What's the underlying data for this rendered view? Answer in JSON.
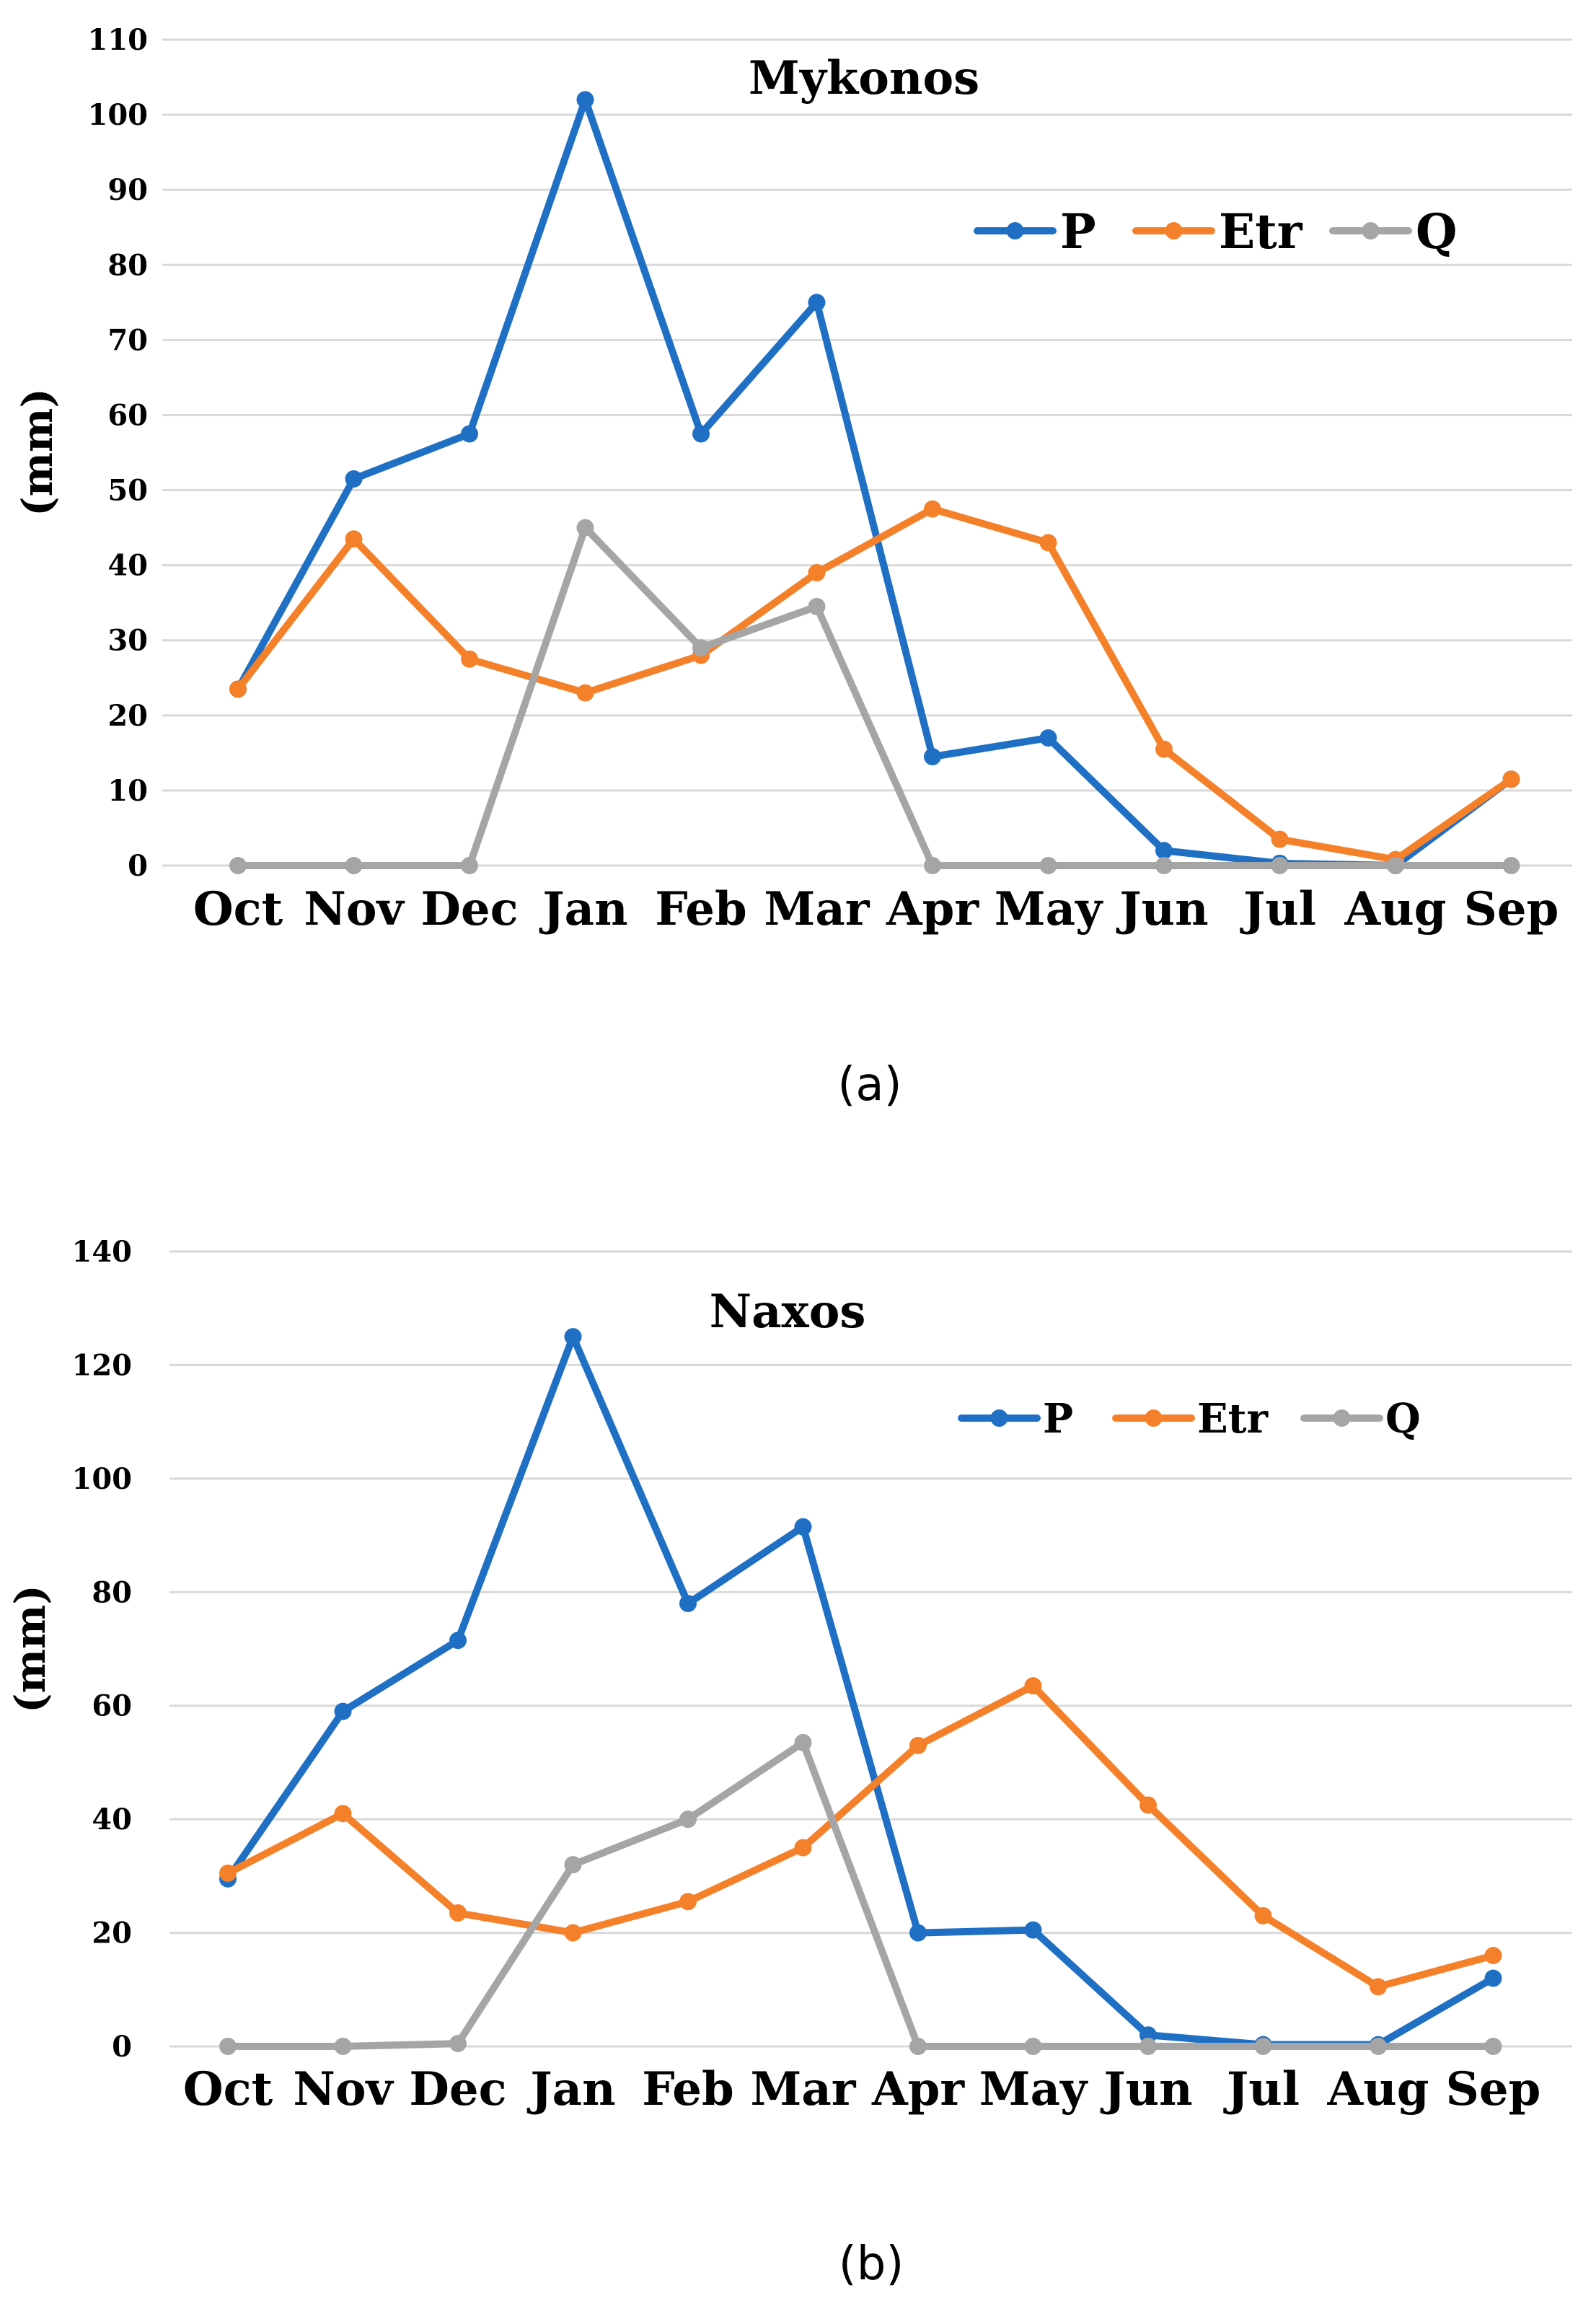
{
  "chart_data": [
    {
      "type": "line",
      "title": "Mykonos",
      "caption": "(a)",
      "ylabel": "(mm)",
      "xlabel": "",
      "ylim": [
        0,
        110
      ],
      "yticks": [
        0,
        10,
        20,
        30,
        40,
        50,
        60,
        70,
        80,
        90,
        100,
        110
      ],
      "categories": [
        "Oct",
        "Nov",
        "Dec",
        "Jan",
        "Feb",
        "Mar",
        "Apr",
        "May",
        "Jun",
        "Jul",
        "Aug",
        "Sep"
      ],
      "grid": true,
      "legend_position": "top-right",
      "series": [
        {
          "name": "P",
          "color": "#1f6fc4",
          "values": [
            23.5,
            51.5,
            57.5,
            102,
            57.5,
            75,
            14.5,
            17,
            2,
            0.3,
            0,
            11.5
          ]
        },
        {
          "name": "Etr",
          "color": "#f5802a",
          "values": [
            23.5,
            43.5,
            27.5,
            23,
            28,
            39,
            47.5,
            43,
            15.5,
            3.5,
            0.8,
            11.5
          ]
        },
        {
          "name": "Q",
          "color": "#a5a5a5",
          "values": [
            0,
            0,
            0,
            45,
            29,
            34.5,
            0,
            0,
            0,
            0,
            0,
            0
          ]
        }
      ]
    },
    {
      "type": "line",
      "title": "Naxos",
      "caption": "(b)",
      "ylabel": "(mm)",
      "xlabel": "",
      "ylim": [
        0,
        140
      ],
      "yticks": [
        0,
        20,
        40,
        60,
        80,
        100,
        120,
        140
      ],
      "categories": [
        "Oct",
        "Nov",
        "Dec",
        "Jan",
        "Feb",
        "Mar",
        "Apr",
        "May",
        "Jun",
        "Jul",
        "Aug",
        "Sep"
      ],
      "grid": true,
      "legend_position": "top-right",
      "series": [
        {
          "name": "P",
          "color": "#1f6fc4",
          "values": [
            29.5,
            59,
            71.5,
            125,
            78,
            91.5,
            20,
            20.5,
            2,
            0.3,
            0.3,
            12
          ]
        },
        {
          "name": "Etr",
          "color": "#f5802a",
          "values": [
            30.5,
            41,
            23.5,
            20,
            25.5,
            35,
            53,
            63.5,
            42.5,
            23,
            10.5,
            16
          ]
        },
        {
          "name": "Q",
          "color": "#a5a5a5",
          "values": [
            0,
            0,
            0.5,
            32,
            40,
            53.5,
            0,
            0,
            0,
            0,
            0,
            0
          ]
        }
      ]
    }
  ]
}
